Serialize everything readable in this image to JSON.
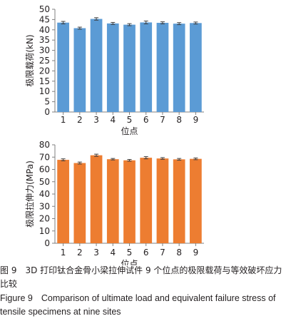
{
  "chart_data": [
    {
      "type": "bar",
      "categories": [
        "1",
        "2",
        "3",
        "4",
        "5",
        "6",
        "7",
        "8",
        "9"
      ],
      "values": [
        43.5,
        40.8,
        45.3,
        43.1,
        42.5,
        43.6,
        43.4,
        43.0,
        43.3
      ],
      "error": [
        0.6,
        0.5,
        0.6,
        0.5,
        0.5,
        0.7,
        0.5,
        0.5,
        0.5
      ],
      "xlabel": "位点",
      "ylabel": "极限载荷(kN)",
      "ylim": [
        0,
        50
      ],
      "yticks": [
        0,
        5,
        10,
        15,
        20,
        25,
        30,
        35,
        40,
        45,
        50
      ],
      "color": "#5b9bd5",
      "grid": false
    },
    {
      "type": "bar",
      "categories": [
        "1",
        "2",
        "3",
        "4",
        "5",
        "6",
        "7",
        "8",
        "9"
      ],
      "values": [
        67.8,
        65.2,
        71.5,
        68.3,
        67.4,
        69.5,
        68.9,
        68.2,
        68.6
      ],
      "error": [
        0.8,
        0.8,
        0.9,
        0.6,
        0.7,
        0.9,
        0.7,
        0.7,
        0.7
      ],
      "xlabel": "位点",
      "ylabel": "极限拉伸力(MPa)",
      "ylim": [
        0,
        80
      ],
      "yticks": [
        0,
        10,
        20,
        30,
        40,
        50,
        60,
        70,
        80
      ],
      "color": "#ed7d31",
      "grid": false
    }
  ],
  "caption": {
    "cn_number": "图 9",
    "cn_text": "3D 打印钛合金骨小梁拉伸试件 9 个位点的极限载荷与等效破坏应力比较",
    "en_number": "Figure 9",
    "en_text": "Comparison of ultimate load and equivalent failure stress of tensile specimens at nine sites"
  }
}
